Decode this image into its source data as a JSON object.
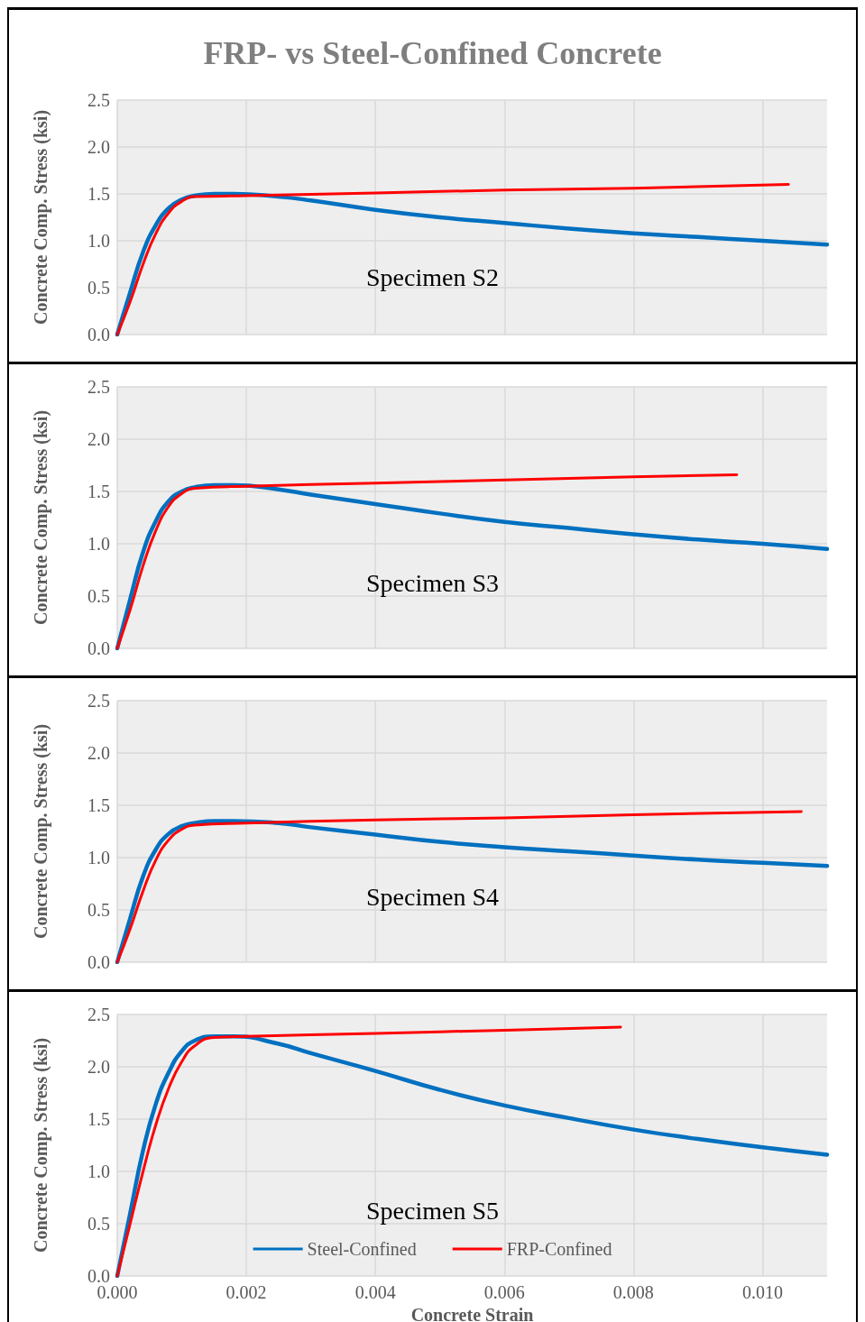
{
  "chart_data": [
    {
      "type": "line",
      "title": "FRP- vs Steel-Confined Concrete",
      "ylabel": "Concrete Comp. Stress (ksi)",
      "annotations": [
        "Specimen S2"
      ],
      "xlim": [
        0,
        0.011
      ],
      "xticks": [
        0,
        0.002,
        0.004,
        0.006,
        0.008,
        0.01
      ],
      "ylim": [
        0,
        2.5
      ],
      "yticks": [
        {
          "value": 0,
          "label": "0.0"
        },
        0.5,
        {
          "value": 1,
          "label": "1.0"
        },
        1.5,
        {
          "value": 2,
          "label": "2.0"
        },
        2.5
      ],
      "tick_labels": "y",
      "grid": true,
      "marker": "none",
      "line_style": "solid",
      "series": [
        {
          "color": "#0070c0",
          "x": [
            0,
            0.0002,
            0.0004,
            0.0006,
            0.0008,
            0.001,
            0.0012,
            0.0015,
            0.0018,
            0.0025,
            0.003,
            0.004,
            0.005,
            0.006,
            0.007,
            0.008,
            0.009,
            0.01,
            0.011
          ],
          "values": [
            0,
            0.45,
            0.88,
            1.17,
            1.35,
            1.44,
            1.48,
            1.5,
            1.5,
            1.47,
            1.43,
            1.33,
            1.25,
            1.19,
            1.13,
            1.08,
            1.04,
            1,
            0.96
          ]
        },
        {
          "color": "#ff0000",
          "x": [
            0,
            0.0002,
            0.0004,
            0.0006,
            0.0008,
            0.001,
            0.0012,
            0.002,
            0.004,
            0.006,
            0.008,
            0.0104
          ],
          "values": [
            0,
            0.35,
            0.75,
            1.08,
            1.3,
            1.42,
            1.47,
            1.48,
            1.51,
            1.54,
            1.56,
            1.6
          ]
        }
      ]
    },
    {
      "type": "line",
      "ylabel": "Concrete Comp. Stress (ksi)",
      "annotations": [
        "Specimen S3"
      ],
      "xlim": [
        0,
        0.011
      ],
      "xticks": [
        0,
        0.002,
        0.004,
        0.006,
        0.008,
        0.01
      ],
      "ylim": [
        0,
        2.5
      ],
      "yticks": [
        {
          "value": 0,
          "label": "0.0"
        },
        0.5,
        {
          "value": 1,
          "label": "1.0"
        },
        1.5,
        {
          "value": 2,
          "label": "2.0"
        },
        2.5
      ],
      "tick_labels": "y",
      "grid": true,
      "marker": "none",
      "line_style": "solid",
      "series": [
        {
          "color": "#0070c0",
          "x": [
            0,
            0.0002,
            0.0004,
            0.0006,
            0.0008,
            0.001,
            0.0012,
            0.0015,
            0.0018,
            0.0025,
            0.003,
            0.004,
            0.005,
            0.006,
            0.007,
            0.008,
            0.009,
            0.01,
            0.011
          ],
          "values": [
            0,
            0.47,
            0.92,
            1.22,
            1.41,
            1.5,
            1.54,
            1.56,
            1.56,
            1.52,
            1.47,
            1.38,
            1.29,
            1.21,
            1.15,
            1.09,
            1.04,
            1,
            0.95
          ]
        },
        {
          "color": "#ff0000",
          "x": [
            0,
            0.0002,
            0.0004,
            0.0006,
            0.0008,
            0.001,
            0.0012,
            0.002,
            0.004,
            0.006,
            0.008,
            0.0096
          ],
          "values": [
            0,
            0.37,
            0.79,
            1.13,
            1.36,
            1.48,
            1.53,
            1.55,
            1.58,
            1.61,
            1.64,
            1.66
          ]
        }
      ]
    },
    {
      "type": "line",
      "ylabel": "Concrete Comp. Stress (ksi)",
      "annotations": [
        "Specimen S4"
      ],
      "xlim": [
        0,
        0.011
      ],
      "xticks": [
        0,
        0.002,
        0.004,
        0.006,
        0.008,
        0.01
      ],
      "ylim": [
        0,
        2.5
      ],
      "yticks": [
        {
          "value": 0,
          "label": "0.0"
        },
        0.5,
        {
          "value": 1,
          "label": "1.0"
        },
        1.5,
        {
          "value": 2,
          "label": "2.0"
        },
        2.5
      ],
      "tick_labels": "y",
      "grid": true,
      "marker": "none",
      "line_style": "solid",
      "series": [
        {
          "color": "#0070c0",
          "x": [
            0,
            0.0002,
            0.0004,
            0.0006,
            0.0008,
            0.001,
            0.0012,
            0.0015,
            0.0018,
            0.0025,
            0.003,
            0.004,
            0.005,
            0.006,
            0.007,
            0.008,
            0.009,
            0.01,
            0.011
          ],
          "values": [
            0,
            0.42,
            0.82,
            1.08,
            1.23,
            1.3,
            1.33,
            1.35,
            1.35,
            1.33,
            1.29,
            1.22,
            1.15,
            1.1,
            1.06,
            1.02,
            0.98,
            0.95,
            0.92
          ]
        },
        {
          "color": "#ff0000",
          "x": [
            0,
            0.0002,
            0.0004,
            0.0006,
            0.0008,
            0.001,
            0.0012,
            0.002,
            0.004,
            0.006,
            0.008,
            0.0106
          ],
          "values": [
            0,
            0.32,
            0.68,
            0.98,
            1.17,
            1.27,
            1.31,
            1.33,
            1.36,
            1.38,
            1.41,
            1.44
          ]
        }
      ]
    },
    {
      "type": "line",
      "xlabel": "Concrete Strain",
      "ylabel": "Concrete Comp. Stress (ksi)",
      "annotations": [
        "Specimen S5"
      ],
      "xlim": [
        0,
        0.011
      ],
      "xticks": [
        {
          "value": 0,
          "label": "0.000"
        },
        {
          "value": 0.002,
          "label": "0.002"
        },
        {
          "value": 0.004,
          "label": "0.004"
        },
        {
          "value": 0.006,
          "label": "0.006"
        },
        {
          "value": 0.008,
          "label": "0.008"
        },
        {
          "value": 0.01,
          "label": "0.010"
        }
      ],
      "ylim": [
        0,
        2.5
      ],
      "yticks": [
        {
          "value": 0,
          "label": "0.0"
        },
        0.5,
        {
          "value": 1,
          "label": "1.0"
        },
        1.5,
        {
          "value": 2,
          "label": "2.0"
        },
        2.5
      ],
      "grid": true,
      "legend": "bottom",
      "marker": "none",
      "line_style": "solid",
      "series": [
        {
          "name": "Steel-Confined",
          "color": "#0070c0",
          "x": [
            0,
            0.0002,
            0.0004,
            0.0006,
            0.0008,
            0.001,
            0.0012,
            0.0015,
            0.0018,
            0.0025,
            0.003,
            0.004,
            0.005,
            0.006,
            0.007,
            0.008,
            0.009,
            0.01,
            0.011
          ],
          "values": [
            0,
            0.6,
            1.2,
            1.65,
            1.95,
            2.15,
            2.25,
            2.29,
            2.29,
            2.22,
            2.13,
            1.96,
            1.78,
            1.63,
            1.51,
            1.4,
            1.31,
            1.23,
            1.16
          ]
        },
        {
          "name": "FRP-Confined",
          "color": "#ff0000",
          "x": [
            0,
            0.0002,
            0.0004,
            0.0006,
            0.0008,
            0.001,
            0.0012,
            0.0015,
            0.002,
            0.004,
            0.006,
            0.0078
          ],
          "values": [
            0,
            0.5,
            1,
            1.45,
            1.8,
            2.05,
            2.2,
            2.28,
            2.29,
            2.32,
            2.35,
            2.38
          ]
        }
      ]
    }
  ]
}
